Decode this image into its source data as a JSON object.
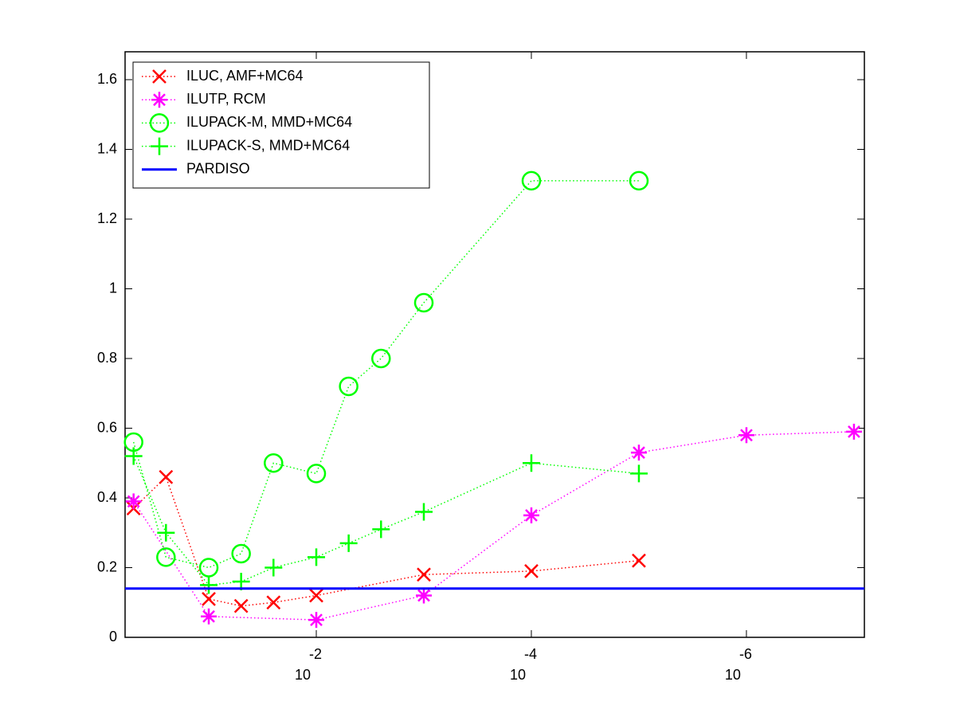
{
  "chart_data": {
    "type": "line",
    "xscale": "log",
    "xlim": [
      0.6,
      8e-08
    ],
    "ylim": [
      0,
      1.68
    ],
    "xticks": [
      {
        "value": 0.01,
        "label": "10^-2"
      },
      {
        "value": 0.0001,
        "label": "10^-4"
      },
      {
        "value": 1e-06,
        "label": "10^-6"
      }
    ],
    "yticks": [
      0,
      0.2,
      0.4,
      0.6,
      0.8,
      1,
      1.2,
      1.4,
      1.6
    ],
    "grid": false,
    "legend": "upper left",
    "series": [
      {
        "name": "ILUC, AMF+MC64",
        "color": "#ff0000",
        "marker": "x",
        "x": [
          0.5,
          0.25,
          0.1,
          0.05,
          0.025,
          0.01,
          0.001,
          0.0001,
          1e-05
        ],
        "values": [
          0.37,
          0.46,
          0.11,
          0.09,
          0.1,
          0.12,
          0.18,
          0.19,
          0.22
        ]
      },
      {
        "name": "ILUTP, RCM",
        "color": "#ff00ff",
        "marker": "*",
        "x": [
          0.5,
          0.1,
          0.01,
          0.001,
          0.0001,
          1e-05,
          1e-06,
          1e-07
        ],
        "values": [
          0.39,
          0.06,
          0.05,
          0.12,
          0.35,
          0.53,
          0.58,
          0.59
        ]
      },
      {
        "name": "ILUPACK-M, MMD+MC64",
        "color": "#00ff00",
        "marker": "o",
        "x": [
          0.5,
          0.25,
          0.1,
          0.05,
          0.025,
          0.01,
          0.005,
          0.0025,
          0.001,
          0.0001,
          1e-05
        ],
        "values": [
          0.56,
          0.23,
          0.2,
          0.24,
          0.5,
          0.47,
          0.72,
          0.8,
          0.96,
          1.31,
          1.31
        ]
      },
      {
        "name": "ILUPACK-S, MMD+MC64",
        "color": "#00ff00",
        "marker": "+",
        "x": [
          0.5,
          0.25,
          0.1,
          0.05,
          0.025,
          0.01,
          0.005,
          0.0025,
          0.001,
          0.0001,
          1e-05
        ],
        "values": [
          0.52,
          0.3,
          0.15,
          0.16,
          0.2,
          0.23,
          0.27,
          0.31,
          0.36,
          0.5,
          0.47
        ]
      }
    ],
    "hline": {
      "name": "PARDISO",
      "color": "#0000ff",
      "value": 0.14
    }
  }
}
